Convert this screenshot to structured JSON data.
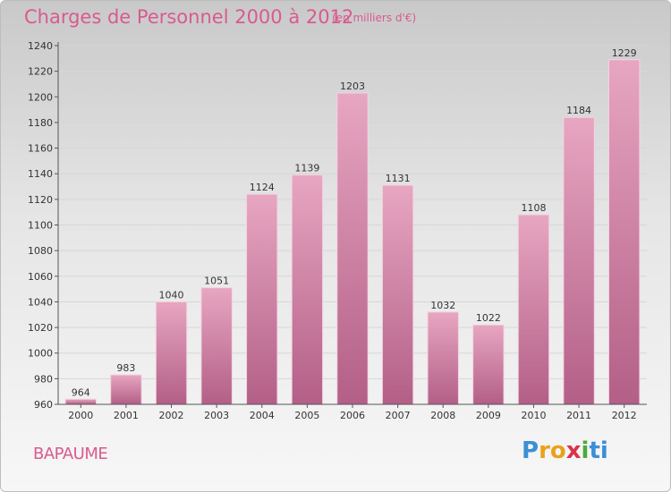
{
  "header": {
    "title": "Charges de Personnel 2000 à 2012",
    "subtitle": "(en milliers d'€)"
  },
  "footer": {
    "city": "BAPAUME",
    "logo": [
      "P",
      "r",
      "o",
      "x",
      "i",
      "ti"
    ]
  },
  "colors": {
    "bar": "#c2688f",
    "bar_light": "#e7a6c1",
    "title": "#d95a8e"
  },
  "chart_data": {
    "type": "bar",
    "title": "Charges de Personnel 2000 à 2012",
    "subtitle": "(en milliers d'€)",
    "categories": [
      "2000",
      "2001",
      "2002",
      "2003",
      "2004",
      "2005",
      "2006",
      "2007",
      "2008",
      "2009",
      "2010",
      "2011",
      "2012"
    ],
    "values": [
      964,
      983,
      1040,
      1051,
      1124,
      1139,
      1203,
      1131,
      1032,
      1022,
      1108,
      1184,
      1229
    ],
    "ylim": [
      960,
      1240
    ],
    "yticks": [
      960,
      980,
      1000,
      1020,
      1040,
      1060,
      1080,
      1100,
      1120,
      1140,
      1160,
      1180,
      1200,
      1220,
      1240
    ],
    "grid": true,
    "xlabel": "",
    "ylabel": ""
  }
}
